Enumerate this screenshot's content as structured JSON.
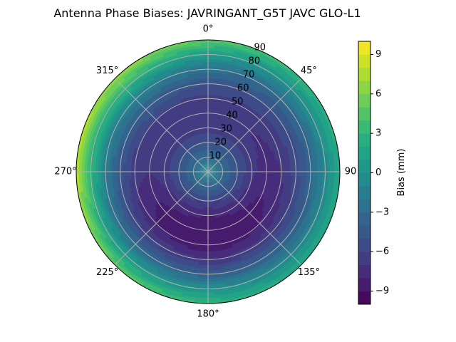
{
  "chart_data": {
    "type": "polar-contour",
    "title": "Antenna Phase Biases: JAVRINGANT_G5T  JAVC GLO-L1",
    "angular_ticks": [
      {
        "angle": 0,
        "label": "0°"
      },
      {
        "angle": 45,
        "label": "45°"
      },
      {
        "angle": 90,
        "label": "90"
      },
      {
        "angle": 135,
        "label": "135°"
      },
      {
        "angle": 180,
        "label": "180°"
      },
      {
        "angle": 225,
        "label": "225°"
      },
      {
        "angle": 270,
        "label": "270°"
      },
      {
        "angle": 315,
        "label": "315°"
      }
    ],
    "radial_ticks": [
      {
        "value": 10,
        "label": "10"
      },
      {
        "value": 20,
        "label": "20"
      },
      {
        "value": 30,
        "label": "30"
      },
      {
        "value": 40,
        "label": "40"
      },
      {
        "value": 50,
        "label": "50"
      },
      {
        "value": 60,
        "label": "60"
      },
      {
        "value": 70,
        "label": "70"
      },
      {
        "value": 80,
        "label": "80"
      },
      {
        "value": 90,
        "label": "90"
      }
    ],
    "rlim": [
      0,
      90
    ],
    "angular_direction": "clockwise",
    "zero_location": "top",
    "grid": true,
    "colorbar": {
      "label": "Bias (mm)",
      "colormap": "viridis",
      "vmin": -10,
      "vmax": 10,
      "levels": 20,
      "ticks": [
        {
          "value": 9,
          "label": "9"
        },
        {
          "value": 6,
          "label": "6"
        },
        {
          "value": 3,
          "label": "3"
        },
        {
          "value": 0,
          "label": "0"
        },
        {
          "value": -3,
          "label": "−3"
        },
        {
          "value": -6,
          "label": "−6"
        },
        {
          "value": -9,
          "label": "−9"
        }
      ]
    },
    "bias_field": {
      "azimuth_deg": [
        0,
        45,
        90,
        135,
        180,
        225,
        270,
        315
      ],
      "zenith_deg": [
        0,
        10,
        20,
        30,
        40,
        50,
        60,
        70,
        80,
        90
      ],
      "values": [
        [
          -1.0,
          -3.0,
          -5.0,
          -6.5,
          -7.0,
          -6.5,
          -5.0,
          -2.5,
          1.0,
          5.0
        ],
        [
          -1.0,
          -3.0,
          -5.0,
          -6.5,
          -7.0,
          -6.5,
          -5.0,
          -3.0,
          0.0,
          3.0
        ],
        [
          -1.0,
          -3.0,
          -5.0,
          -6.8,
          -7.5,
          -7.0,
          -5.5,
          -3.5,
          -0.5,
          2.0
        ],
        [
          -1.0,
          -3.2,
          -5.5,
          -7.5,
          -8.5,
          -8.0,
          -6.5,
          -4.0,
          -1.0,
          2.0
        ],
        [
          -1.0,
          -3.5,
          -6.0,
          -8.0,
          -9.0,
          -9.0,
          -7.0,
          -4.0,
          0.0,
          3.0
        ],
        [
          -1.0,
          -3.2,
          -5.5,
          -7.5,
          -8.5,
          -8.0,
          -6.0,
          -3.0,
          1.0,
          5.0
        ],
        [
          -1.0,
          -3.0,
          -5.0,
          -6.5,
          -7.0,
          -6.5,
          -4.5,
          -1.5,
          3.0,
          8.0
        ],
        [
          -1.0,
          -3.0,
          -5.0,
          -6.5,
          -7.0,
          -6.0,
          -4.0,
          -1.0,
          3.0,
          7.0
        ]
      ]
    }
  }
}
